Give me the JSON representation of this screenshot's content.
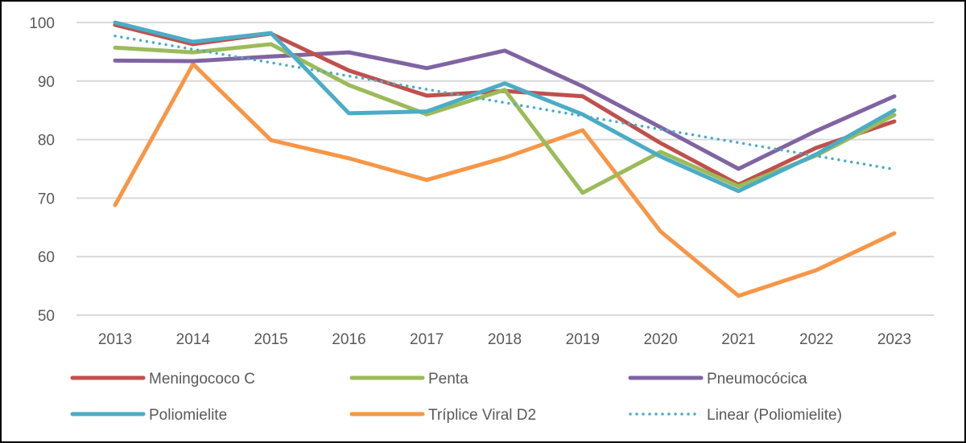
{
  "chart_data": {
    "type": "line",
    "title": "",
    "xlabel": "",
    "ylabel": "",
    "x": [
      2013,
      2014,
      2015,
      2016,
      2017,
      2018,
      2019,
      2020,
      2021,
      2022,
      2023
    ],
    "ylim": [
      50,
      100
    ],
    "yticks": [
      50,
      60,
      70,
      80,
      90,
      100
    ],
    "grid": true,
    "legend_position": "bottom",
    "series": [
      {
        "name": "Meningococo C",
        "color": "#C0504D",
        "values": [
          99.6,
          96.3,
          98.1,
          91.8,
          87.5,
          88.3,
          87.4,
          79.4,
          72.3,
          78.6,
          83.1
        ]
      },
      {
        "name": "Penta",
        "color": "#9BBB59",
        "values": [
          95.7,
          94.9,
          96.3,
          89.3,
          84.3,
          88.5,
          70.9,
          77.9,
          72.0,
          77.3,
          84.2
        ]
      },
      {
        "name": "Pneumocócica",
        "color": "#8064A2",
        "values": [
          93.5,
          93.4,
          94.2,
          94.9,
          92.2,
          95.2,
          89.1,
          82.1,
          75.0,
          81.5,
          87.4
        ]
      },
      {
        "name": "Poliomielite",
        "color": "#4BACC6",
        "values": [
          100.5,
          96.7,
          98.2,
          84.5,
          84.8,
          89.6,
          84.3,
          77.1,
          71.2,
          77.5,
          85.0
        ]
      },
      {
        "name": "Tríplice Viral  D2",
        "color": "#F79646",
        "values": [
          68.8,
          92.9,
          79.9,
          76.8,
          73.1,
          76.9,
          81.6,
          64.3,
          53.3,
          57.7,
          64.0
        ]
      }
    ],
    "trendline": {
      "name": "Linear (Poliomielite)",
      "of_series": "Poliomielite",
      "type": "linear",
      "color": "#4BACC6",
      "style": "dotted"
    }
  }
}
